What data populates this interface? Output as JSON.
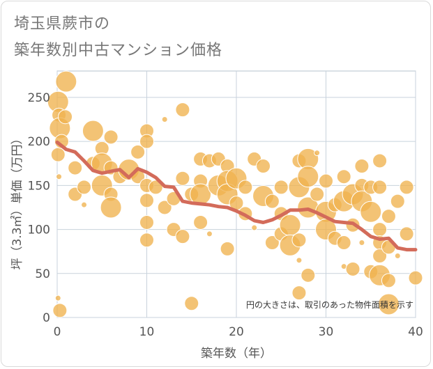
{
  "title": {
    "line1": "埼玉県蕨市の",
    "line2": "築年数別中古マンション価格"
  },
  "colors": {
    "bubble": "#f0b24e",
    "bubble_stroke": "#ffffff",
    "line": "#d36b5a",
    "grid": "#c8d2dc",
    "plot_border": "#b4c0cc"
  },
  "chart_data": {
    "type": "scatter",
    "xlabel": "築年数（年）",
    "ylabel": "坪（3.3㎡）単価（万円）",
    "xlim": [
      0,
      40
    ],
    "ylim": [
      0,
      280
    ],
    "xticks": [
      0,
      10,
      20,
      30,
      40
    ],
    "yticks": [
      0,
      50,
      100,
      150,
      200,
      250
    ],
    "grid": true,
    "annotation": "円の大きさは、取引のあった物件面積を示す",
    "bubbles": [
      {
        "x": 0.1,
        "y": 245,
        "s": 3
      },
      {
        "x": 0.2,
        "y": 230,
        "s": 2
      },
      {
        "x": 0.3,
        "y": 215,
        "s": 3
      },
      {
        "x": 0.1,
        "y": 185,
        "s": 2
      },
      {
        "x": 0.2,
        "y": 160,
        "s": 1
      },
      {
        "x": 0.1,
        "y": 22,
        "s": 1
      },
      {
        "x": 0.3,
        "y": 8,
        "s": 2
      },
      {
        "x": 1,
        "y": 268,
        "s": 3
      },
      {
        "x": 0.9,
        "y": 228,
        "s": 2
      },
      {
        "x": 0.5,
        "y": 200,
        "s": 2
      },
      {
        "x": 2,
        "y": 170,
        "s": 2
      },
      {
        "x": 2,
        "y": 140,
        "s": 2
      },
      {
        "x": 3,
        "y": 148,
        "s": 2
      },
      {
        "x": 3,
        "y": 128,
        "s": 1
      },
      {
        "x": 4,
        "y": 212,
        "s": 3
      },
      {
        "x": 4,
        "y": 175,
        "s": 2
      },
      {
        "x": 5,
        "y": 192,
        "s": 2
      },
      {
        "x": 5,
        "y": 175,
        "s": 3
      },
      {
        "x": 5,
        "y": 150,
        "s": 3
      },
      {
        "x": 6,
        "y": 205,
        "s": 2
      },
      {
        "x": 6,
        "y": 170,
        "s": 2
      },
      {
        "x": 6,
        "y": 140,
        "s": 2
      },
      {
        "x": 6,
        "y": 125,
        "s": 3
      },
      {
        "x": 7,
        "y": 160,
        "s": 2
      },
      {
        "x": 8,
        "y": 168,
        "s": 3
      },
      {
        "x": 9,
        "y": 188,
        "s": 2
      },
      {
        "x": 9,
        "y": 160,
        "s": 2
      },
      {
        "x": 10,
        "y": 212,
        "s": 2
      },
      {
        "x": 10,
        "y": 200,
        "s": 2
      },
      {
        "x": 10,
        "y": 150,
        "s": 2
      },
      {
        "x": 10,
        "y": 133,
        "s": 2
      },
      {
        "x": 10,
        "y": 108,
        "s": 2
      },
      {
        "x": 10,
        "y": 88,
        "s": 2
      },
      {
        "x": 11,
        "y": 148,
        "s": 2
      },
      {
        "x": 12,
        "y": 225,
        "s": 1
      },
      {
        "x": 12,
        "y": 125,
        "s": 2
      },
      {
        "x": 13,
        "y": 135,
        "s": 2
      },
      {
        "x": 13,
        "y": 100,
        "s": 2
      },
      {
        "x": 14,
        "y": 236,
        "s": 2
      },
      {
        "x": 14,
        "y": 158,
        "s": 2
      },
      {
        "x": 14,
        "y": 92,
        "s": 2
      },
      {
        "x": 15,
        "y": 140,
        "s": 2
      },
      {
        "x": 15,
        "y": 16,
        "s": 2
      },
      {
        "x": 16,
        "y": 180,
        "s": 2
      },
      {
        "x": 16,
        "y": 155,
        "s": 2
      },
      {
        "x": 16,
        "y": 140,
        "s": 3
      },
      {
        "x": 16,
        "y": 108,
        "s": 2
      },
      {
        "x": 17,
        "y": 178,
        "s": 2
      },
      {
        "x": 17,
        "y": 95,
        "s": 1
      },
      {
        "x": 18,
        "y": 180,
        "s": 2
      },
      {
        "x": 18,
        "y": 150,
        "s": 3
      },
      {
        "x": 19,
        "y": 172,
        "s": 2
      },
      {
        "x": 19,
        "y": 155,
        "s": 3
      },
      {
        "x": 19,
        "y": 140,
        "s": 3
      },
      {
        "x": 19,
        "y": 78,
        "s": 2
      },
      {
        "x": 20,
        "y": 158,
        "s": 3
      },
      {
        "x": 20,
        "y": 130,
        "s": 2
      },
      {
        "x": 21,
        "y": 118,
        "s": 2
      },
      {
        "x": 21,
        "y": 148,
        "s": 2
      },
      {
        "x": 22,
        "y": 180,
        "s": 2
      },
      {
        "x": 22,
        "y": 102,
        "s": 1
      },
      {
        "x": 23,
        "y": 172,
        "s": 2
      },
      {
        "x": 23,
        "y": 138,
        "s": 3
      },
      {
        "x": 24,
        "y": 132,
        "s": 2
      },
      {
        "x": 24,
        "y": 85,
        "s": 2
      },
      {
        "x": 25,
        "y": 148,
        "s": 2
      },
      {
        "x": 25,
        "y": 118,
        "s": 2
      },
      {
        "x": 25,
        "y": 95,
        "s": 2
      },
      {
        "x": 26,
        "y": 105,
        "s": 3
      },
      {
        "x": 26,
        "y": 82,
        "s": 3
      },
      {
        "x": 27,
        "y": 178,
        "s": 2
      },
      {
        "x": 27,
        "y": 148,
        "s": 3
      },
      {
        "x": 27,
        "y": 88,
        "s": 2
      },
      {
        "x": 27,
        "y": 65,
        "s": 1
      },
      {
        "x": 27,
        "y": 28,
        "s": 2
      },
      {
        "x": 28,
        "y": 180,
        "s": 3
      },
      {
        "x": 28,
        "y": 160,
        "s": 3
      },
      {
        "x": 28,
        "y": 125,
        "s": 3
      },
      {
        "x": 28,
        "y": 48,
        "s": 2
      },
      {
        "x": 29,
        "y": 187,
        "s": 1
      },
      {
        "x": 29,
        "y": 140,
        "s": 2
      },
      {
        "x": 30,
        "y": 155,
        "s": 2
      },
      {
        "x": 30,
        "y": 120,
        "s": 3
      },
      {
        "x": 30,
        "y": 100,
        "s": 3
      },
      {
        "x": 31,
        "y": 128,
        "s": 2
      },
      {
        "x": 31,
        "y": 90,
        "s": 2
      },
      {
        "x": 32,
        "y": 160,
        "s": 2
      },
      {
        "x": 32,
        "y": 132,
        "s": 3
      },
      {
        "x": 32,
        "y": 85,
        "s": 2
      },
      {
        "x": 32,
        "y": 58,
        "s": 1
      },
      {
        "x": 33,
        "y": 140,
        "s": 3
      },
      {
        "x": 33,
        "y": 105,
        "s": 2
      },
      {
        "x": 33,
        "y": 55,
        "s": 2
      },
      {
        "x": 34,
        "y": 172,
        "s": 2
      },
      {
        "x": 34,
        "y": 150,
        "s": 2
      },
      {
        "x": 34,
        "y": 132,
        "s": 3
      },
      {
        "x": 34,
        "y": 85,
        "s": 1
      },
      {
        "x": 35,
        "y": 148,
        "s": 2
      },
      {
        "x": 35,
        "y": 120,
        "s": 3
      },
      {
        "x": 35,
        "y": 52,
        "s": 2
      },
      {
        "x": 36,
        "y": 178,
        "s": 2
      },
      {
        "x": 36,
        "y": 148,
        "s": 2
      },
      {
        "x": 36,
        "y": 100,
        "s": 2
      },
      {
        "x": 36,
        "y": 85,
        "s": 2
      },
      {
        "x": 36,
        "y": 70,
        "s": 2
      },
      {
        "x": 36,
        "y": 48,
        "s": 3
      },
      {
        "x": 37,
        "y": 115,
        "s": 2
      },
      {
        "x": 37,
        "y": 80,
        "s": 2
      },
      {
        "x": 37,
        "y": 42,
        "s": 2
      },
      {
        "x": 37,
        "y": 15,
        "s": 3
      },
      {
        "x": 38,
        "y": 132,
        "s": 2
      },
      {
        "x": 38,
        "y": 70,
        "s": 1
      },
      {
        "x": 39,
        "y": 148,
        "s": 2
      },
      {
        "x": 39,
        "y": 95,
        "s": 2
      },
      {
        "x": 40,
        "y": 45,
        "s": 2
      }
    ],
    "series": [
      {
        "x": [
          0,
          1,
          2,
          3,
          4,
          5,
          6,
          7,
          8,
          9,
          10,
          11,
          12,
          13,
          14,
          15,
          16,
          17,
          18,
          19,
          20,
          21,
          22,
          23,
          24,
          25,
          26,
          27,
          28,
          29,
          30,
          31,
          32,
          33,
          34,
          35,
          36,
          37,
          38,
          39,
          40
        ],
        "y": [
          199,
          191,
          188,
          178,
          167,
          164,
          166,
          168,
          159,
          169,
          165,
          159,
          149,
          148,
          132,
          130,
          129,
          128,
          126,
          125,
          121,
          116,
          110,
          108,
          111,
          116,
          122,
          122,
          123,
          119,
          114,
          109,
          108,
          107,
          100,
          92,
          89,
          90,
          79,
          77,
          77
        ]
      }
    ]
  }
}
